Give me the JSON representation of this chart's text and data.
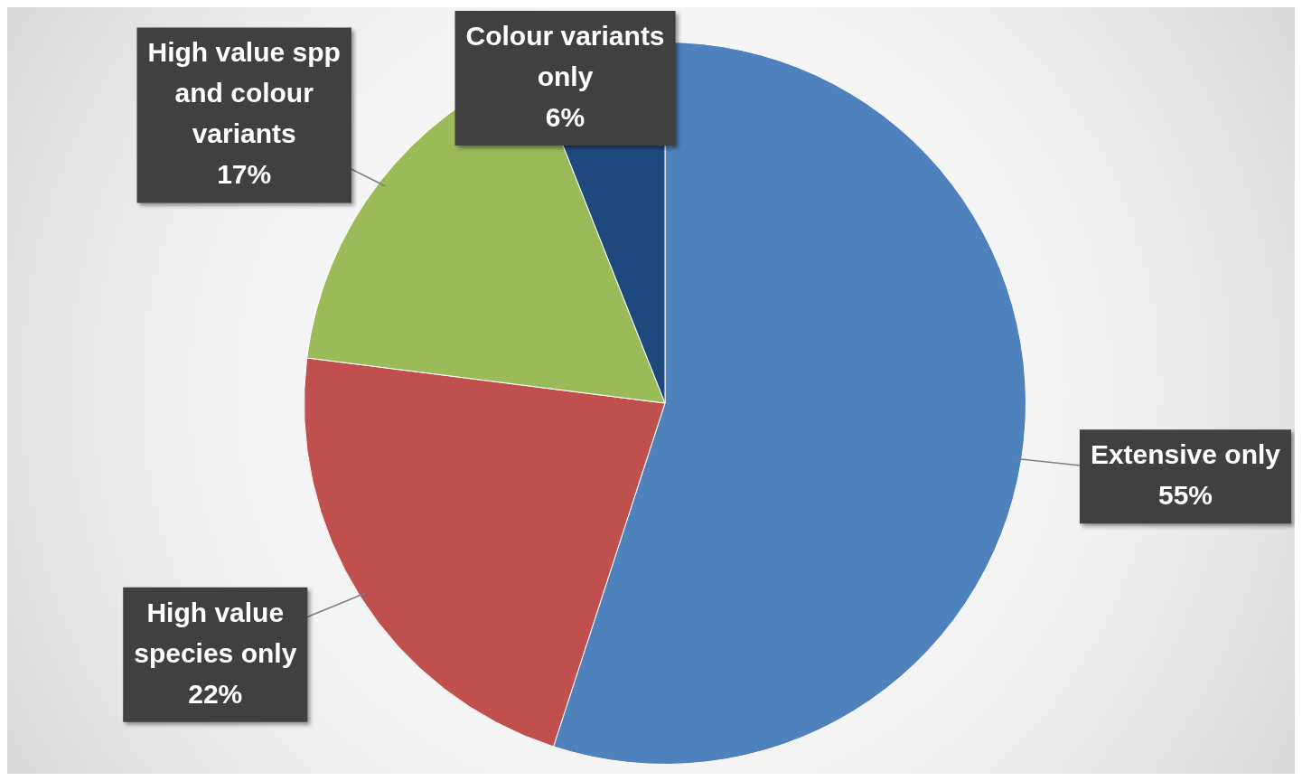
{
  "chart_data": {
    "type": "pie",
    "categories": [
      "Extensive only",
      "High value species only",
      "High value spp and colour variants",
      "Colour variants only"
    ],
    "values": [
      55,
      22,
      17,
      6
    ],
    "colors": [
      "#4f81bd",
      "#c0504d",
      "#9bbb59",
      "#1f497d"
    ],
    "value_labels": [
      "55%",
      "22%",
      "17%",
      "6%"
    ],
    "legend": false
  }
}
